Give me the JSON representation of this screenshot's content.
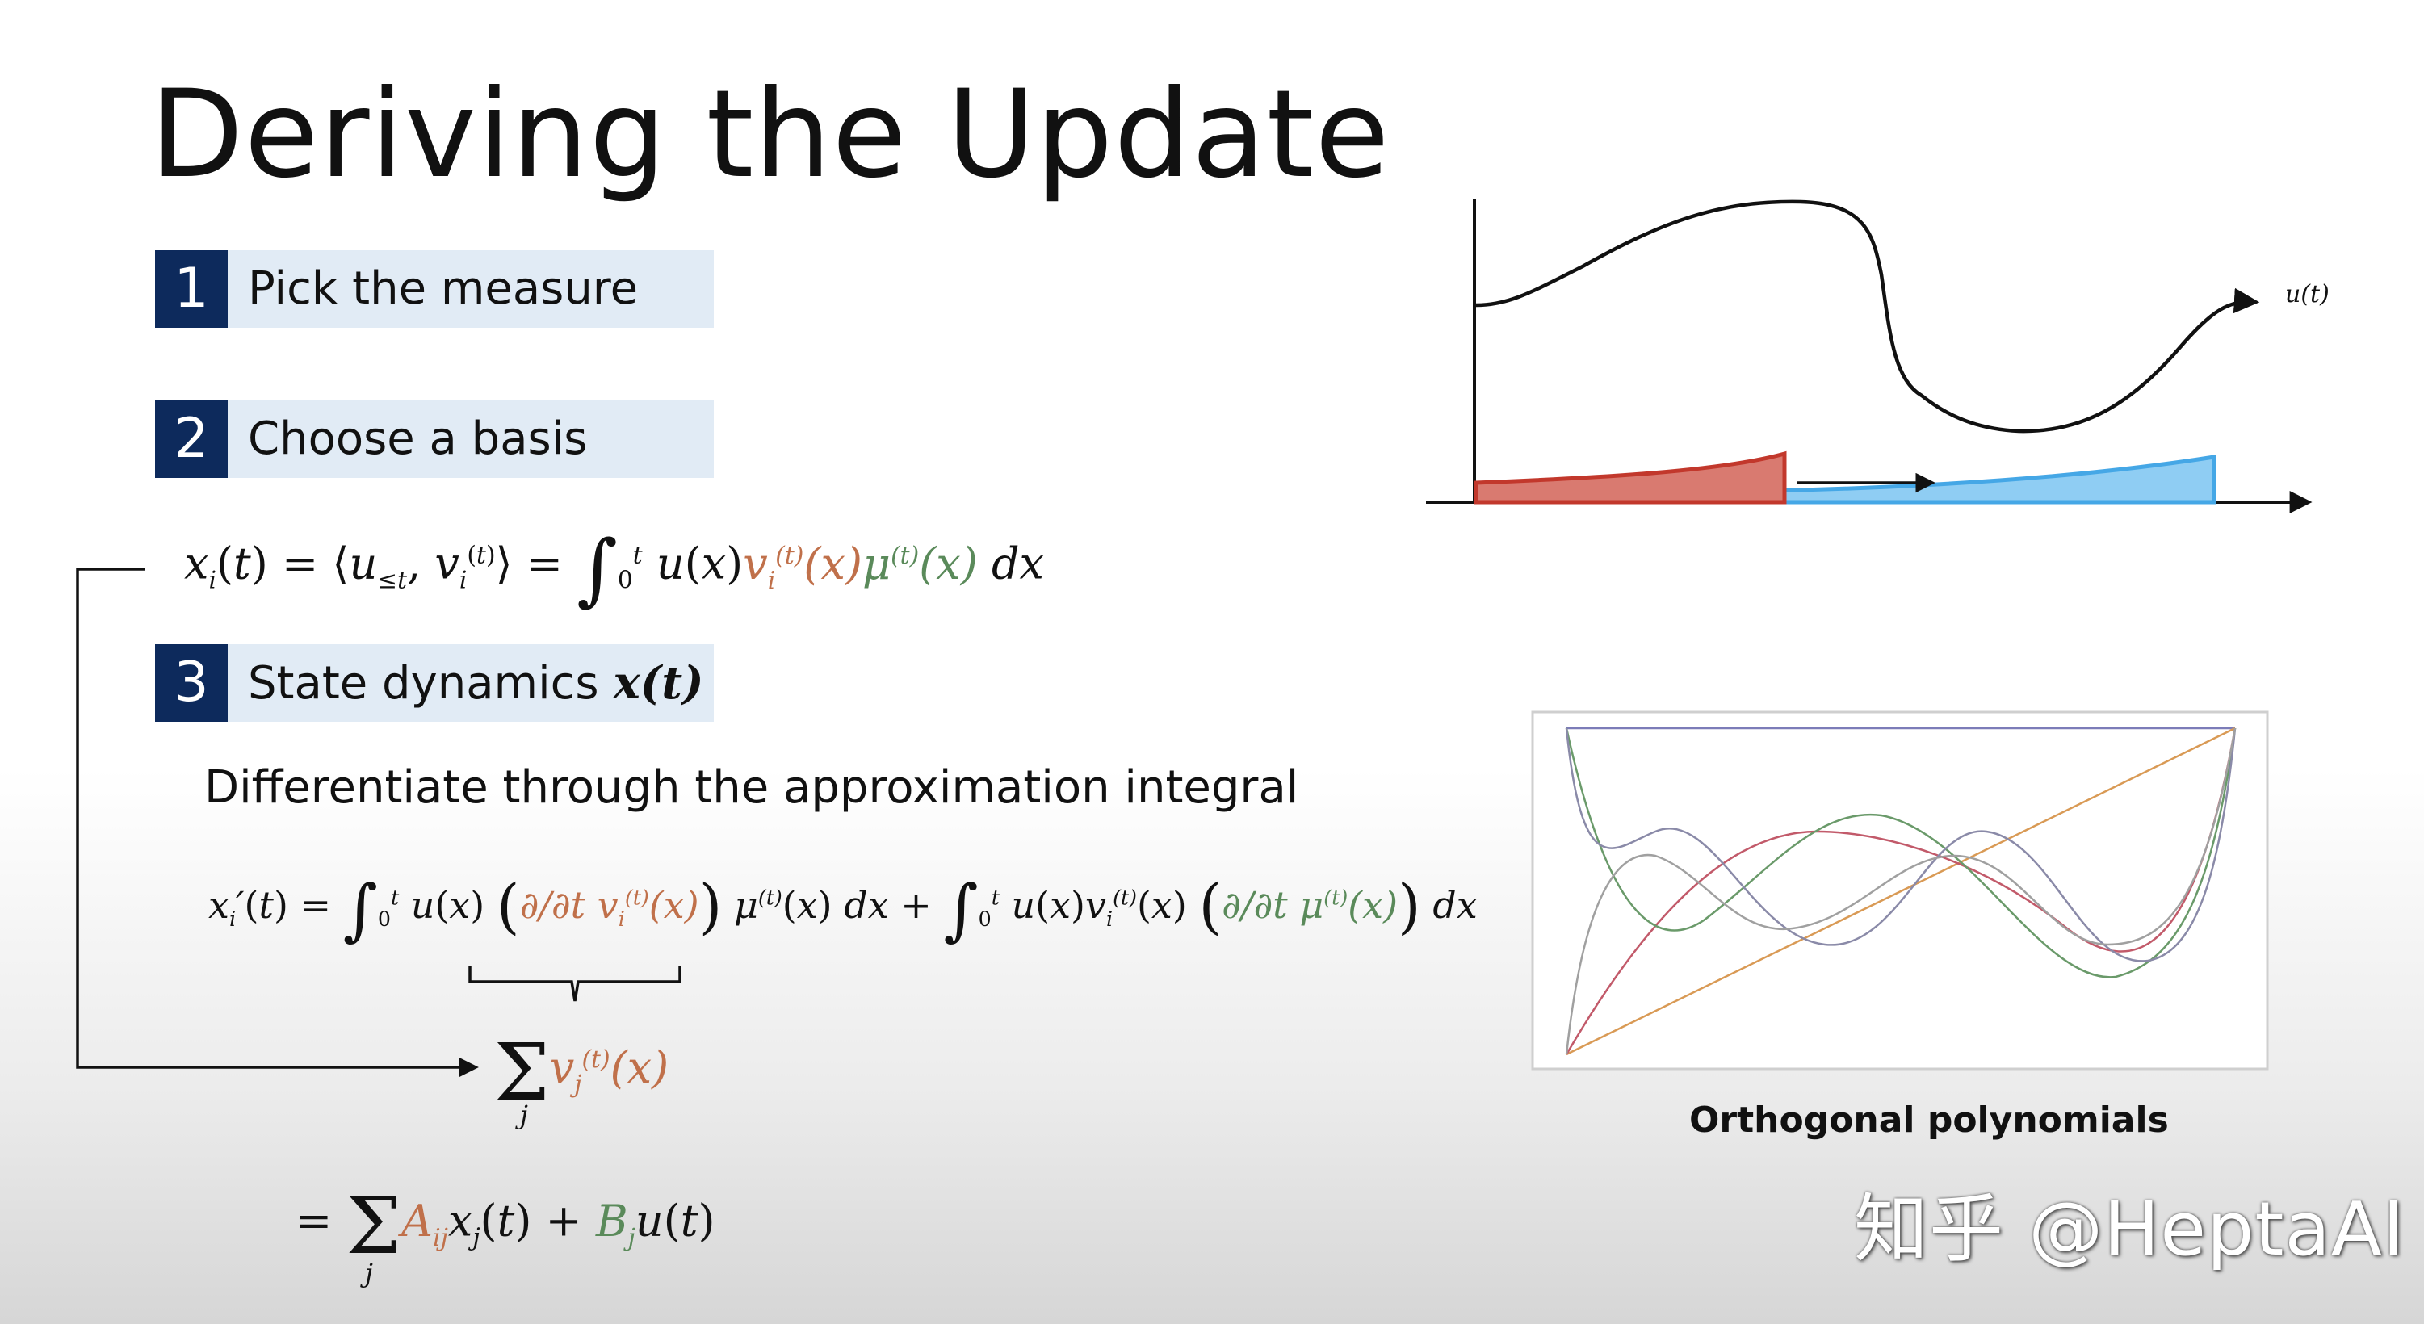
{
  "slide": {
    "title": "Deriving the Update",
    "steps": [
      {
        "number": "1",
        "label": "Pick the measure"
      },
      {
        "number": "2",
        "label": "Choose a basis"
      },
      {
        "number": "3",
        "label": "State dynamics",
        "math_suffix": "x(t)"
      }
    ],
    "sentence": "Differentiate through the approximation integral",
    "equations": {
      "projection": "x_i(t) = ⟨u_{≤t}, v_i^{(t)}⟩ = ∫_0^t u(x) v_i^{(t)}(x) μ^{(t)}(x) dx",
      "derivative": "x_i'(t) = ∫_0^t u(x) (∂/∂t v_i^{(t)}(x)) μ^{(t)}(x) dx + ∫_0^t u(x) v_i^{(t)}(x) (∂/∂t μ^{(t)}(x)) dx",
      "basis_sum": "Σ_j v_j^{(t)}(x)",
      "result": "= Σ_j A_ij x_j(t) + B_j u(t)"
    },
    "signal_label": "u(t)",
    "figure_caption": "Orthogonal polynomials",
    "watermark": "知乎 @HeptaAI",
    "colors": {
      "step_number_bg": "#0d2a5c",
      "step_label_bg": "#e1ebf5",
      "basis_term": "#c0704a",
      "measure_term": "#5a8a5a",
      "old_measure": "#d9483b",
      "new_measure": "#45a7e6"
    }
  }
}
